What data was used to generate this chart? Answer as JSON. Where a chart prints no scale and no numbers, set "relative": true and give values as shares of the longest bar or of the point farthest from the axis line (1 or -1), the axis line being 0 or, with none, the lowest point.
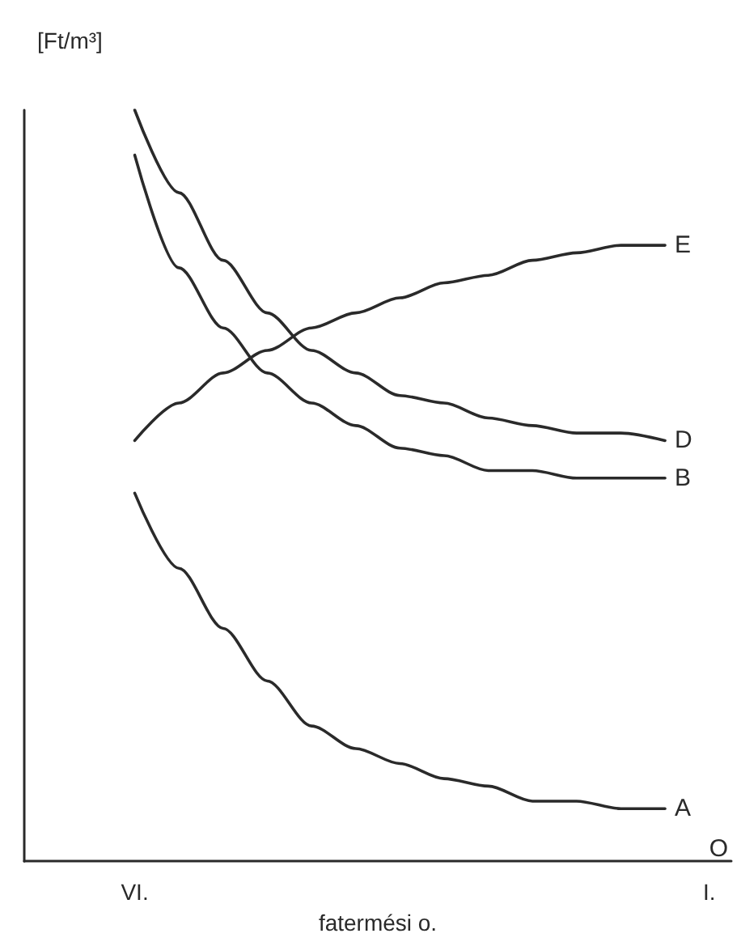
{
  "chart_data": {
    "type": "line",
    "relative": true,
    "xlabel": "fatermési o.",
    "ylabel": "[Ft/m³]",
    "categories": [
      null,
      null,
      "VI.",
      null,
      null,
      null,
      null,
      null,
      null,
      null,
      null,
      null,
      null,
      null,
      null,
      "I."
    ],
    "series": [
      {
        "name": "E",
        "color": "#2a2a2a",
        "values": [
          null,
          null,
          0.56,
          0.61,
          0.65,
          0.68,
          0.71,
          0.73,
          0.75,
          0.77,
          0.78,
          0.8,
          0.81,
          0.82,
          0.82,
          null
        ]
      },
      {
        "name": "D",
        "color": "#2a2a2a",
        "values": [
          null,
          null,
          1.0,
          0.89,
          0.8,
          0.73,
          0.68,
          0.65,
          0.62,
          0.61,
          0.59,
          0.58,
          0.57,
          0.57,
          0.56,
          null
        ]
      },
      {
        "name": "B",
        "color": "#2a2a2a",
        "values": [
          null,
          null,
          0.94,
          0.79,
          0.71,
          0.65,
          0.61,
          0.58,
          0.55,
          0.54,
          0.52,
          0.52,
          0.51,
          0.51,
          0.51,
          null
        ]
      },
      {
        "name": "A",
        "color": "#2a2a2a",
        "values": [
          null,
          null,
          0.49,
          0.39,
          0.31,
          0.24,
          0.18,
          0.15,
          0.13,
          0.11,
          0.1,
          0.08,
          0.08,
          0.07,
          0.07,
          null
        ]
      }
    ],
    "annotations": [
      "O"
    ],
    "grid": false,
    "legend": false,
    "marker": "none",
    "line_style": "solid"
  }
}
